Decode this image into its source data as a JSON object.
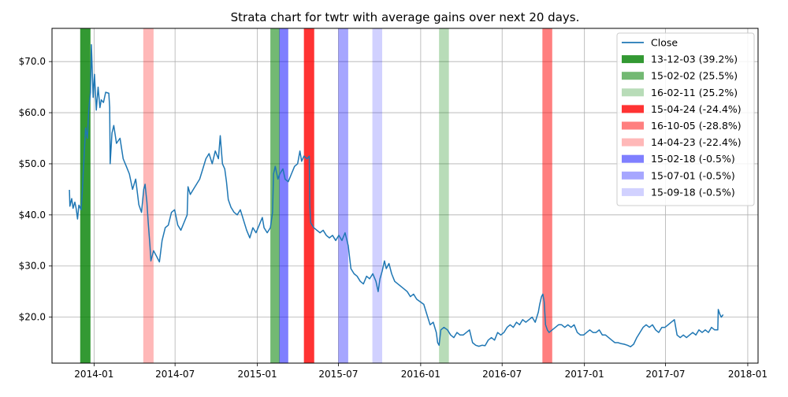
{
  "chart_data": {
    "type": "line",
    "title": "Strata chart for twtr with average gains over next 20 days.",
    "xlabel": "",
    "ylabel": "",
    "xlim": [
      "2013-09-29",
      "2018-01-24"
    ],
    "ylim": [
      11,
      76.5
    ],
    "grid": true,
    "legend_position": "top-right",
    "x_ticks": [
      "2014-01",
      "2014-07",
      "2015-01",
      "2015-07",
      "2016-01",
      "2016-07",
      "2017-01",
      "2017-07",
      "2018-01"
    ],
    "y_ticks": [
      {
        "value": 20,
        "label": "$20.0"
      },
      {
        "value": 30,
        "label": "$30.0"
      },
      {
        "value": 40,
        "label": "$40.0"
      },
      {
        "value": 50,
        "label": "$50.0"
      },
      {
        "value": 60,
        "label": "$60.0"
      },
      {
        "value": 70,
        "label": "$70.0"
      }
    ],
    "series": [
      {
        "name": "Close",
        "color": "#1f77b4",
        "points": [
          [
            "2013-11-07",
            44.9
          ],
          [
            "2013-11-08",
            41.7
          ],
          [
            "2013-11-12",
            43.2
          ],
          [
            "2013-11-15",
            41.3
          ],
          [
            "2013-11-19",
            42.5
          ],
          [
            "2013-11-22",
            41.2
          ],
          [
            "2013-11-25",
            39.2
          ],
          [
            "2013-11-28",
            41.9
          ],
          [
            "2013-12-03",
            41.0
          ],
          [
            "2013-12-06",
            45.0
          ],
          [
            "2013-12-10",
            52.0
          ],
          [
            "2013-12-13",
            57.0
          ],
          [
            "2013-12-17",
            55.0
          ],
          [
            "2013-12-20",
            60.5
          ],
          [
            "2013-12-24",
            64.0
          ],
          [
            "2013-12-26",
            73.3
          ],
          [
            "2013-12-30",
            63.0
          ],
          [
            "2014-01-02",
            67.5
          ],
          [
            "2014-01-06",
            60.5
          ],
          [
            "2014-01-10",
            65.0
          ],
          [
            "2014-01-14",
            61.0
          ],
          [
            "2014-01-17",
            62.5
          ],
          [
            "2014-01-22",
            62.0
          ],
          [
            "2014-01-27",
            64.0
          ],
          [
            "2014-02-03",
            63.8
          ],
          [
            "2014-02-05",
            61.0
          ],
          [
            "2014-02-06",
            50.0
          ],
          [
            "2014-02-10",
            56.0
          ],
          [
            "2014-02-14",
            57.5
          ],
          [
            "2014-02-20",
            54.0
          ],
          [
            "2014-02-28",
            55.0
          ],
          [
            "2014-03-07",
            51.0
          ],
          [
            "2014-03-14",
            49.5
          ],
          [
            "2014-03-21",
            48.0
          ],
          [
            "2014-03-28",
            45.0
          ],
          [
            "2014-04-04",
            47.0
          ],
          [
            "2014-04-11",
            42.0
          ],
          [
            "2014-04-17",
            40.5
          ],
          [
            "2014-04-22",
            45.0
          ],
          [
            "2014-04-25",
            46.0
          ],
          [
            "2014-04-29",
            42.5
          ],
          [
            "2014-05-02",
            38.5
          ],
          [
            "2014-05-06",
            34.0
          ],
          [
            "2014-05-08",
            31.0
          ],
          [
            "2014-05-14",
            33.0
          ],
          [
            "2014-05-20",
            32.0
          ],
          [
            "2014-05-27",
            30.8
          ],
          [
            "2014-06-02",
            35.0
          ],
          [
            "2014-06-09",
            37.5
          ],
          [
            "2014-06-16",
            38.0
          ],
          [
            "2014-06-23",
            40.5
          ],
          [
            "2014-06-30",
            41.0
          ],
          [
            "2014-07-07",
            38.0
          ],
          [
            "2014-07-14",
            37.0
          ],
          [
            "2014-07-21",
            38.5
          ],
          [
            "2014-07-28",
            40.0
          ],
          [
            "2014-07-30",
            45.5
          ],
          [
            "2014-08-04",
            44.0
          ],
          [
            "2014-08-11",
            45.0
          ],
          [
            "2014-08-18",
            46.0
          ],
          [
            "2014-08-25",
            47.0
          ],
          [
            "2014-09-01",
            49.0
          ],
          [
            "2014-09-08",
            51.0
          ],
          [
            "2014-09-15",
            52.0
          ],
          [
            "2014-09-22",
            50.0
          ],
          [
            "2014-09-29",
            52.5
          ],
          [
            "2014-10-06",
            51.0
          ],
          [
            "2014-10-10",
            55.5
          ],
          [
            "2014-10-15",
            50.0
          ],
          [
            "2014-10-20",
            49.0
          ],
          [
            "2014-10-24",
            46.5
          ],
          [
            "2014-10-28",
            43.0
          ],
          [
            "2014-11-03",
            41.5
          ],
          [
            "2014-11-10",
            40.5
          ],
          [
            "2014-11-17",
            40.0
          ],
          [
            "2014-11-24",
            41.0
          ],
          [
            "2014-12-01",
            39.0
          ],
          [
            "2014-12-08",
            37.0
          ],
          [
            "2014-12-15",
            35.5
          ],
          [
            "2014-12-22",
            37.5
          ],
          [
            "2014-12-29",
            36.5
          ],
          [
            "2015-01-05",
            38.0
          ],
          [
            "2015-01-12",
            39.5
          ],
          [
            "2015-01-16",
            37.5
          ],
          [
            "2015-01-23",
            36.5
          ],
          [
            "2015-01-30",
            37.5
          ],
          [
            "2015-02-04",
            40.5
          ],
          [
            "2015-02-06",
            48.0
          ],
          [
            "2015-02-10",
            49.5
          ],
          [
            "2015-02-16",
            47.0
          ],
          [
            "2015-02-20",
            48.0
          ],
          [
            "2015-02-27",
            49.0
          ],
          [
            "2015-03-04",
            47.0
          ],
          [
            "2015-03-11",
            46.5
          ],
          [
            "2015-03-18",
            48.0
          ],
          [
            "2015-03-25",
            49.5
          ],
          [
            "2015-04-01",
            50.0
          ],
          [
            "2015-04-06",
            52.5
          ],
          [
            "2015-04-10",
            50.5
          ],
          [
            "2015-04-15",
            51.5
          ],
          [
            "2015-04-22",
            51.0
          ],
          [
            "2015-04-27",
            51.5
          ],
          [
            "2015-04-28",
            42.0
          ],
          [
            "2015-04-30",
            38.5
          ],
          [
            "2015-05-07",
            37.5
          ],
          [
            "2015-05-14",
            37.0
          ],
          [
            "2015-05-21",
            36.5
          ],
          [
            "2015-05-28",
            37.0
          ],
          [
            "2015-06-04",
            36.0
          ],
          [
            "2015-06-11",
            35.5
          ],
          [
            "2015-06-18",
            36.0
          ],
          [
            "2015-06-25",
            35.0
          ],
          [
            "2015-07-02",
            36.0
          ],
          [
            "2015-07-09",
            35.0
          ],
          [
            "2015-07-16",
            36.5
          ],
          [
            "2015-07-23",
            34.0
          ],
          [
            "2015-07-29",
            29.5
          ],
          [
            "2015-08-05",
            28.5
          ],
          [
            "2015-08-12",
            28.0
          ],
          [
            "2015-08-19",
            27.0
          ],
          [
            "2015-08-26",
            26.5
          ],
          [
            "2015-09-02",
            28.0
          ],
          [
            "2015-09-09",
            27.5
          ],
          [
            "2015-09-16",
            28.5
          ],
          [
            "2015-09-23",
            27.0
          ],
          [
            "2015-09-28",
            25.0
          ],
          [
            "2015-10-02",
            27.5
          ],
          [
            "2015-10-07",
            29.0
          ],
          [
            "2015-10-12",
            31.0
          ],
          [
            "2015-10-16",
            29.5
          ],
          [
            "2015-10-22",
            30.5
          ],
          [
            "2015-10-28",
            28.5
          ],
          [
            "2015-11-04",
            27.0
          ],
          [
            "2015-11-11",
            26.5
          ],
          [
            "2015-11-18",
            26.0
          ],
          [
            "2015-11-25",
            25.5
          ],
          [
            "2015-12-02",
            25.0
          ],
          [
            "2015-12-09",
            24.0
          ],
          [
            "2015-12-16",
            24.5
          ],
          [
            "2015-12-23",
            23.5
          ],
          [
            "2015-12-31",
            23.0
          ],
          [
            "2016-01-08",
            22.5
          ],
          [
            "2016-01-15",
            20.5
          ],
          [
            "2016-01-22",
            18.5
          ],
          [
            "2016-01-29",
            19.0
          ],
          [
            "2016-02-05",
            17.0
          ],
          [
            "2016-02-08",
            15.0
          ],
          [
            "2016-02-11",
            14.5
          ],
          [
            "2016-02-15",
            17.5
          ],
          [
            "2016-02-22",
            18.0
          ],
          [
            "2016-03-01",
            17.5
          ],
          [
            "2016-03-08",
            16.5
          ],
          [
            "2016-03-15",
            16.0
          ],
          [
            "2016-03-22",
            17.0
          ],
          [
            "2016-03-29",
            16.5
          ],
          [
            "2016-04-05",
            16.5
          ],
          [
            "2016-04-12",
            17.0
          ],
          [
            "2016-04-19",
            17.5
          ],
          [
            "2016-04-26",
            15.0
          ],
          [
            "2016-05-03",
            14.5
          ],
          [
            "2016-05-10",
            14.3
          ],
          [
            "2016-05-17",
            14.5
          ],
          [
            "2016-05-24",
            14.4
          ],
          [
            "2016-05-31",
            15.5
          ],
          [
            "2016-06-07",
            16.0
          ],
          [
            "2016-06-14",
            15.5
          ],
          [
            "2016-06-21",
            17.0
          ],
          [
            "2016-06-28",
            16.5
          ],
          [
            "2016-07-05",
            17.0
          ],
          [
            "2016-07-12",
            18.0
          ],
          [
            "2016-07-19",
            18.5
          ],
          [
            "2016-07-26",
            18.0
          ],
          [
            "2016-08-02",
            19.0
          ],
          [
            "2016-08-09",
            18.5
          ],
          [
            "2016-08-16",
            19.5
          ],
          [
            "2016-08-23",
            19.0
          ],
          [
            "2016-08-30",
            19.5
          ],
          [
            "2016-09-06",
            20.0
          ],
          [
            "2016-09-13",
            19.0
          ],
          [
            "2016-09-20",
            21.0
          ],
          [
            "2016-09-23",
            22.5
          ],
          [
            "2016-09-27",
            24.0
          ],
          [
            "2016-09-30",
            24.5
          ],
          [
            "2016-10-03",
            23.0
          ],
          [
            "2016-10-06",
            18.5
          ],
          [
            "2016-10-10",
            17.5
          ],
          [
            "2016-10-14",
            17.0
          ],
          [
            "2016-10-21",
            17.5
          ],
          [
            "2016-10-28",
            18.0
          ],
          [
            "2016-11-04",
            18.5
          ],
          [
            "2016-11-11",
            18.5
          ],
          [
            "2016-11-18",
            18.0
          ],
          [
            "2016-11-25",
            18.5
          ],
          [
            "2016-12-02",
            18.0
          ],
          [
            "2016-12-09",
            18.5
          ],
          [
            "2016-12-16",
            17.0
          ],
          [
            "2016-12-23",
            16.5
          ],
          [
            "2016-12-30",
            16.5
          ],
          [
            "2017-01-06",
            17.0
          ],
          [
            "2017-01-13",
            17.5
          ],
          [
            "2017-01-20",
            17.0
          ],
          [
            "2017-01-27",
            17.0
          ],
          [
            "2017-02-03",
            17.5
          ],
          [
            "2017-02-10",
            16.5
          ],
          [
            "2017-02-17",
            16.5
          ],
          [
            "2017-02-24",
            16.0
          ],
          [
            "2017-03-03",
            15.5
          ],
          [
            "2017-03-10",
            15.0
          ],
          [
            "2017-03-17",
            15.0
          ],
          [
            "2017-03-24",
            14.8
          ],
          [
            "2017-03-31",
            14.7
          ],
          [
            "2017-04-07",
            14.5
          ],
          [
            "2017-04-14",
            14.2
          ],
          [
            "2017-04-21",
            14.7
          ],
          [
            "2017-04-28",
            16.0
          ],
          [
            "2017-05-05",
            17.0
          ],
          [
            "2017-05-12",
            18.0
          ],
          [
            "2017-05-19",
            18.5
          ],
          [
            "2017-05-26",
            18.0
          ],
          [
            "2017-06-02",
            18.5
          ],
          [
            "2017-06-09",
            17.5
          ],
          [
            "2017-06-16",
            17.0
          ],
          [
            "2017-06-23",
            18.0
          ],
          [
            "2017-06-30",
            18.0
          ],
          [
            "2017-07-07",
            18.5
          ],
          [
            "2017-07-14",
            19.0
          ],
          [
            "2017-07-21",
            19.5
          ],
          [
            "2017-07-27",
            16.5
          ],
          [
            "2017-08-03",
            16.0
          ],
          [
            "2017-08-10",
            16.5
          ],
          [
            "2017-08-17",
            16.0
          ],
          [
            "2017-08-24",
            16.5
          ],
          [
            "2017-08-31",
            17.0
          ],
          [
            "2017-09-07",
            16.5
          ],
          [
            "2017-09-14",
            17.5
          ],
          [
            "2017-09-21",
            17.0
          ],
          [
            "2017-09-28",
            17.5
          ],
          [
            "2017-10-05",
            17.0
          ],
          [
            "2017-10-12",
            18.0
          ],
          [
            "2017-10-19",
            17.5
          ],
          [
            "2017-10-26",
            17.5
          ],
          [
            "2017-10-27",
            21.5
          ],
          [
            "2017-10-31",
            20.5
          ],
          [
            "2017-11-03",
            20.0
          ],
          [
            "2017-11-07",
            20.5
          ]
        ]
      }
    ],
    "strata": [
      {
        "label": "13-12-03 (39.2%)",
        "start": "2013-12-01",
        "end": "2013-12-24",
        "color": "#008000",
        "opacity": 0.8
      },
      {
        "label": "15-02-02 (25.5%)",
        "start": "2015-01-30",
        "end": "2015-02-20",
        "color": "#008000",
        "opacity": 0.55
      },
      {
        "label": "16-02-11 (25.2%)",
        "start": "2016-02-11",
        "end": "2016-03-04",
        "color": "#008000",
        "opacity": 0.28
      },
      {
        "label": "15-04-24 (-24.4%)",
        "start": "2015-04-15",
        "end": "2015-05-08",
        "color": "#ff0000",
        "opacity": 0.8
      },
      {
        "label": "16-10-05 (-28.8%)",
        "start": "2016-09-29",
        "end": "2016-10-21",
        "color": "#ff0000",
        "opacity": 0.5
      },
      {
        "label": "14-04-23 (-22.4%)",
        "start": "2014-04-21",
        "end": "2014-05-14",
        "color": "#ff0000",
        "opacity": 0.28
      },
      {
        "label": "15-02-18 (-0.5%)",
        "start": "2015-02-19",
        "end": "2015-03-11",
        "color": "#0000ff",
        "opacity": 0.5
      },
      {
        "label": "15-07-01 (-0.5%)",
        "start": "2015-07-01",
        "end": "2015-07-23",
        "color": "#0000ff",
        "opacity": 0.35
      },
      {
        "label": "15-09-18 (-0.5%)",
        "start": "2015-09-15",
        "end": "2015-10-07",
        "color": "#0000ff",
        "opacity": 0.18
      }
    ]
  }
}
